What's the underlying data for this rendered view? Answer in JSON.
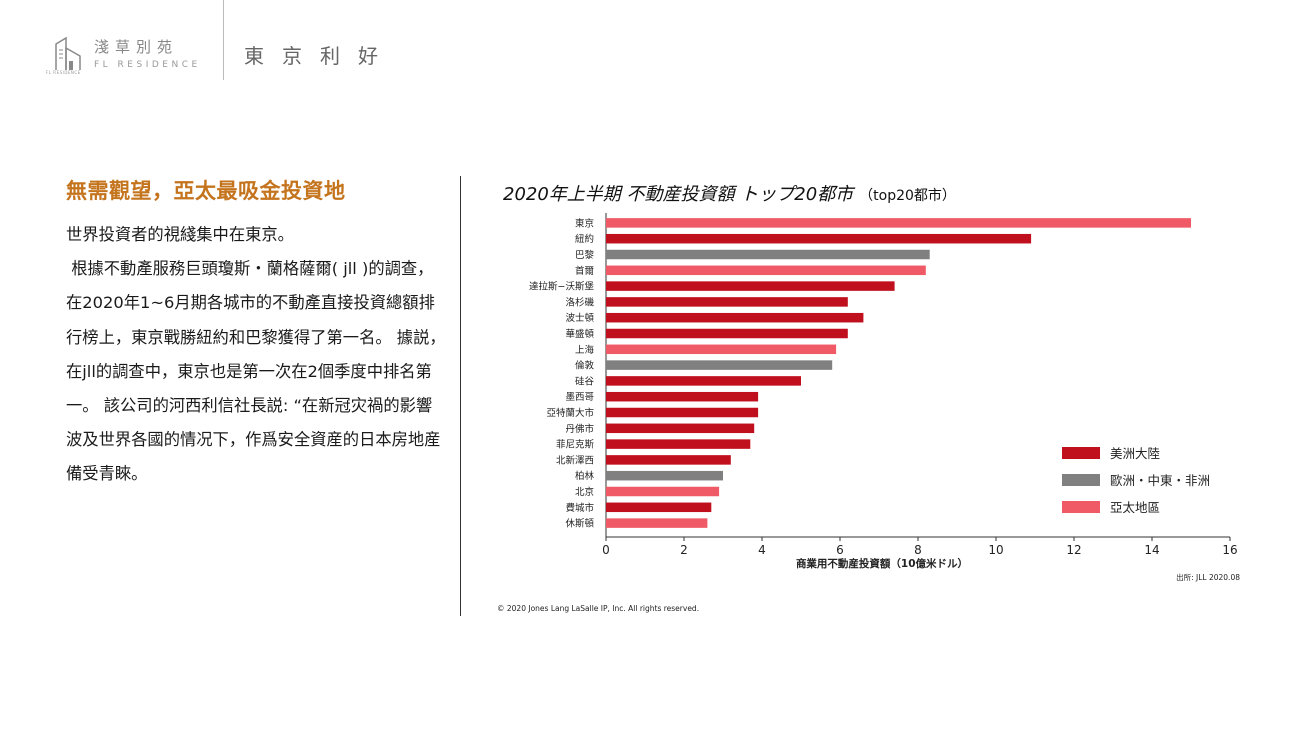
{
  "header": {
    "brand_cn": "淺草別苑",
    "brand_en": "FL RESIDENCE",
    "brand_sub": "FL RESIDENCE",
    "page_title": "東京利好"
  },
  "article": {
    "headline": "無需觀望，亞太最吸金投資地",
    "paragraphs": [
      "世界投資者的視綫集中在東京。",
      " 根據不動產服務巨頭瓊斯・蘭格薩爾( jll )的調查，在2020年1~6月期各城市的不動產直接投資總額排行榜上，東京戰勝紐約和巴黎獲得了第一名。 據説，在jll的調查中，東京也是第一次在2個季度中排名第一。 該公司的河西利信社長説: “在新冠灾禍的影響波及世界各國的情况下，作爲安全資産的日本房地産備受青睞。"
    ]
  },
  "chart_data": {
    "type": "bar",
    "orientation": "horizontal",
    "title": "2020年上半期 不動産投資額 トップ20都市",
    "subtitle": "（top20都市）",
    "xlabel": "商業用不動産投資額（10億米ドル）",
    "ylabel": "",
    "xlim": [
      0,
      16
    ],
    "xticks": [
      0,
      2,
      4,
      6,
      8,
      10,
      12,
      14,
      16
    ],
    "grid": false,
    "legend_position": "right",
    "source": "出所: JLL 2020.08",
    "categories": [
      "東京",
      "紐約",
      "巴黎",
      "首爾",
      "達拉斯−沃斯堡",
      "洛杉磯",
      "波士頓",
      "華盛頓",
      "上海",
      "倫敦",
      "硅谷",
      "墨西哥",
      "亞特蘭大市",
      "丹佛市",
      "菲尼克斯",
      "北新澤西",
      "柏林",
      "北京",
      "費城市",
      "休斯頓"
    ],
    "values": [
      15.0,
      10.9,
      8.3,
      8.2,
      7.4,
      6.2,
      6.6,
      6.2,
      5.9,
      5.8,
      5.0,
      3.9,
      3.9,
      3.8,
      3.7,
      3.2,
      3.0,
      2.9,
      2.7,
      2.6
    ],
    "regions": [
      "asia",
      "americas",
      "emea",
      "asia",
      "americas",
      "americas",
      "americas",
      "americas",
      "asia",
      "emea",
      "americas",
      "americas",
      "americas",
      "americas",
      "americas",
      "americas",
      "emea",
      "asia",
      "americas",
      "asia"
    ],
    "legend": [
      {
        "key": "americas",
        "label": "美洲大陸",
        "color": "#c0101e"
      },
      {
        "key": "emea",
        "label": "歐洲・中東・非洲",
        "color": "#808080"
      },
      {
        "key": "asia",
        "label": "亞太地區",
        "color": "#f05a66"
      }
    ]
  },
  "footer": {
    "copyright": "© 2020 Jones Lang LaSalle IP, Inc. All rights reserved."
  }
}
